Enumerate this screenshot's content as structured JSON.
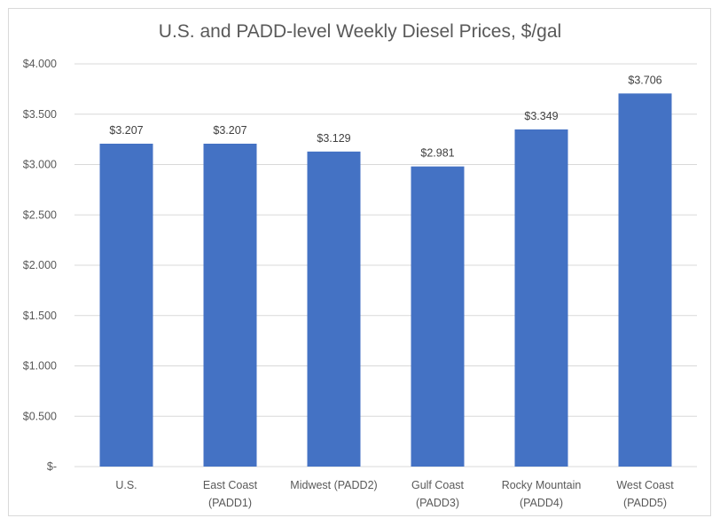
{
  "chart_data": {
    "type": "bar",
    "title": "U.S. and PADD-level Weekly Diesel Prices, $/gal",
    "categories": [
      [
        "U.S."
      ],
      [
        "East Coast",
        "(PADD1)"
      ],
      [
        "Midwest (PADD2)"
      ],
      [
        "Gulf Coast",
        "(PADD3)"
      ],
      [
        "Rocky Mountain",
        "(PADD4)"
      ],
      [
        "West Coast",
        "(PADD5)"
      ]
    ],
    "values": [
      3.207,
      3.207,
      3.129,
      2.981,
      3.349,
      3.706
    ],
    "data_labels": [
      "$3.207",
      "$3.207",
      "$3.129",
      "$2.981",
      "$3.349",
      "$3.706"
    ],
    "ylim": [
      0,
      4.0
    ],
    "yticks": [
      0,
      0.5,
      1.0,
      1.5,
      2.0,
      2.5,
      3.0,
      3.5,
      4.0
    ],
    "ytick_labels": [
      "$-",
      "$0.500",
      "$1.000",
      "$1.500",
      "$2.000",
      "$2.500",
      "$3.000",
      "$3.500",
      "$4.000"
    ],
    "grid": true,
    "legend": "none",
    "bar_color": "#4472c4",
    "grid_color": "#d9d9d9"
  }
}
